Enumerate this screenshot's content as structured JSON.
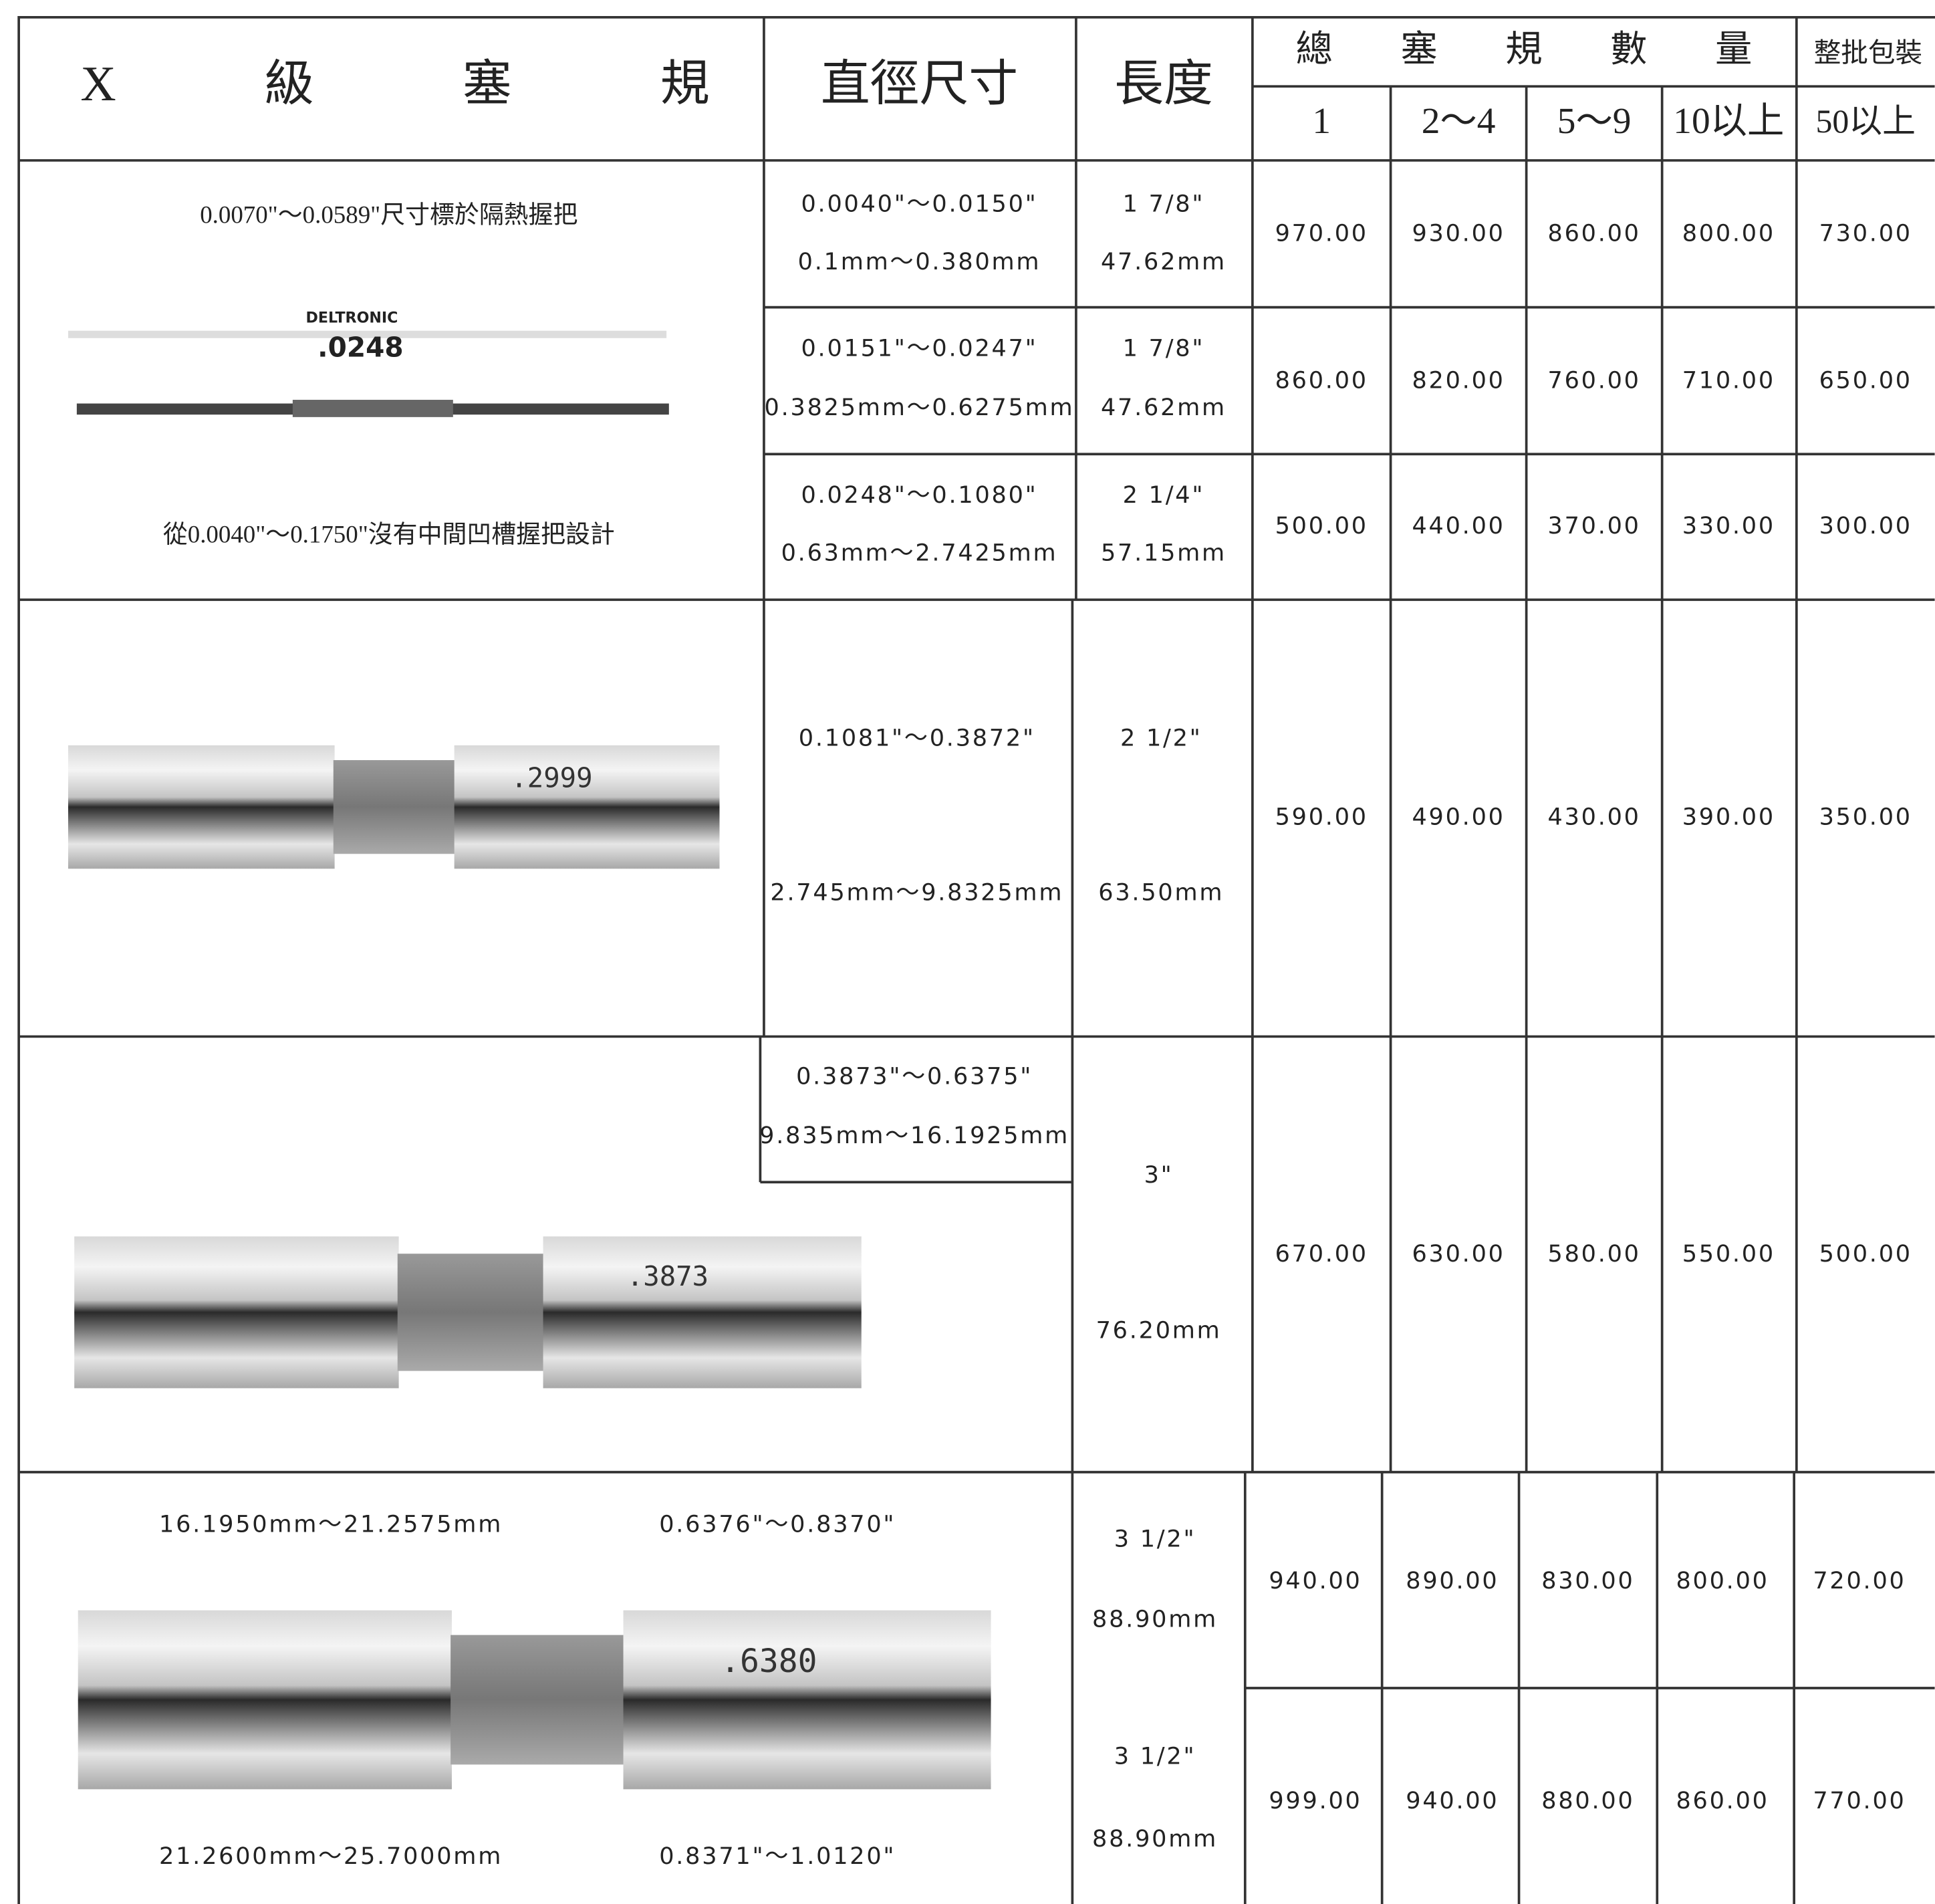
{
  "header": {
    "title": "X級塞規",
    "diameter": "直徑尺寸",
    "length": "長度",
    "quantity": "總塞規數量",
    "bulk": "整批包裝",
    "quantities": [
      "1",
      "2～4",
      "5～9",
      "10以上",
      "50以上"
    ]
  },
  "notes": [
    "0.0070\"～0.0589\"尺寸標於隔熱握把",
    "從0.0040\"～0.1750\"沒有中間凹槽握把設計"
  ],
  "gauge_labels": [
    "DELTRONIC",
    ".0248",
    ".2999",
    ".3873",
    ".6380"
  ],
  "rows": [
    {
      "diameter_in": "0.0040\"～0.0150\"",
      "diameter_mm": "0.1mm～0.380mm",
      "length_in": "1 7/8\"",
      "length_mm": "47.62mm",
      "prices": [
        "970.00",
        "930.00",
        "860.00",
        "800.00",
        "730.00"
      ]
    },
    {
      "diameter_in": "0.0151\"～0.0247\"",
      "diameter_mm": "0.3825mm～0.6275mm",
      "length_in": "1 7/8\"",
      "length_mm": "47.62mm",
      "prices": [
        "860.00",
        "820.00",
        "760.00",
        "710.00",
        "650.00"
      ]
    },
    {
      "diameter_in": "0.0248\"～0.1080\"",
      "diameter_mm": "0.63mm～2.7425mm",
      "length_in": "2 1/4\"",
      "length_mm": "57.15mm",
      "prices": [
        "500.00",
        "440.00",
        "370.00",
        "330.00",
        "300.00"
      ]
    },
    {
      "diameter_in": "0.1081\"～0.3872\"",
      "diameter_mm": "2.745mm～9.8325mm",
      "length_in": "2 1/2\"",
      "length_mm": "63.50mm",
      "prices": [
        "590.00",
        "490.00",
        "430.00",
        "390.00",
        "350.00"
      ]
    },
    {
      "diameter_in": "0.3873\"～0.6375\"",
      "diameter_mm": "9.835mm～16.1925mm",
      "length_in": "3\"",
      "length_mm": "76.20mm",
      "prices": [
        "670.00",
        "630.00",
        "580.00",
        "550.00",
        "500.00"
      ]
    },
    {
      "diameter_in": "0.6376\"～0.8370\"",
      "diameter_mm": "16.1950mm～21.2575mm",
      "length_in": "3 1/2\"",
      "length_mm": "88.90mm",
      "prices": [
        "940.00",
        "890.00",
        "830.00",
        "800.00",
        "720.00"
      ]
    },
    {
      "diameter_in": "0.8371\"～1.0120\"",
      "diameter_mm": "21.2600mm～25.7000mm",
      "length_in": "3 1/2\"",
      "length_mm": "88.90mm",
      "prices": [
        "999.00",
        "940.00",
        "880.00",
        "860.00",
        "770.00"
      ]
    }
  ]
}
